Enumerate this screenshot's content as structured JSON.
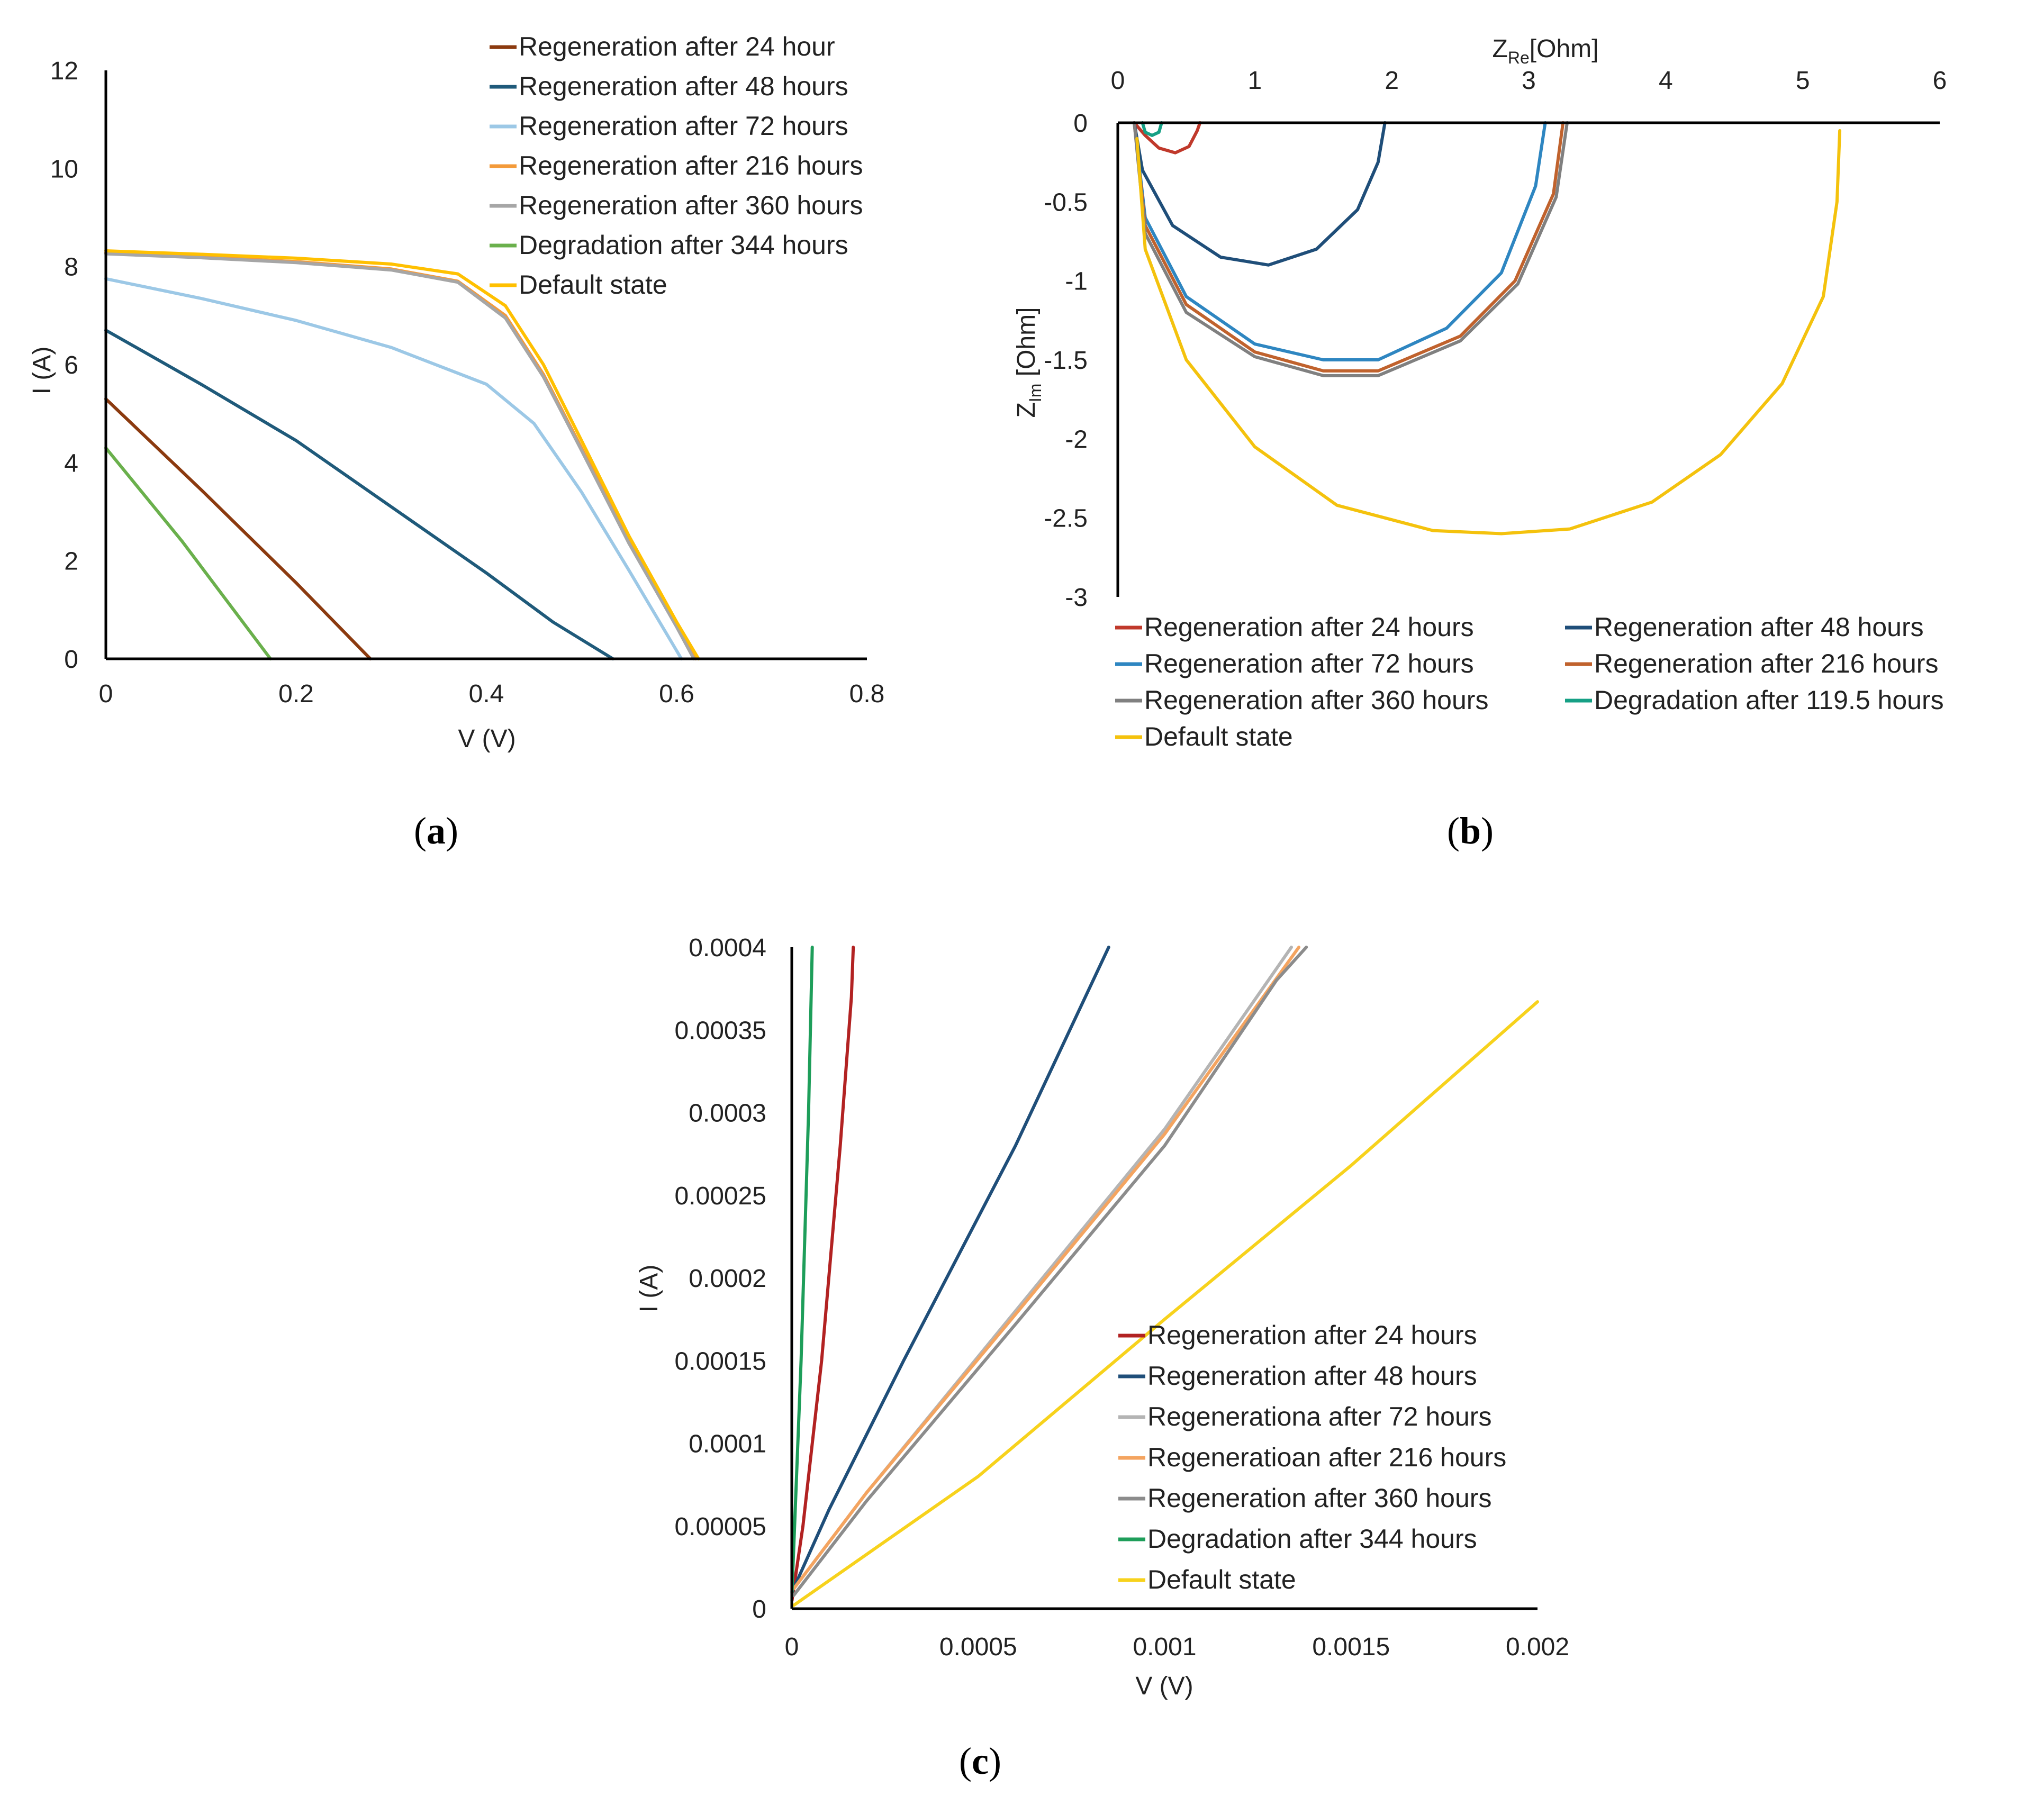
{
  "chart_data": [
    {
      "id": "a",
      "type": "line",
      "caption": "a",
      "xlabel": "V (V)",
      "ylabel": "I (A)",
      "xlim": [
        0,
        0.8
      ],
      "ylim": [
        0,
        12
      ],
      "x_ticks": [
        "0",
        "0.2",
        "0.4",
        "0.6",
        "0.8"
      ],
      "y_ticks": [
        "0",
        "2",
        "4",
        "6",
        "8",
        "10",
        "12"
      ],
      "legend_position": "top-right",
      "series": [
        {
          "name": "Regeneration after 24 hour",
          "color": "#8B3A0F",
          "points": [
            [
              0,
              5.3
            ],
            [
              0.1,
              3.45
            ],
            [
              0.2,
              1.55
            ],
            [
              0.278,
              0
            ]
          ]
        },
        {
          "name": "Regeneration after 48 hours",
          "color": "#1F5A7A",
          "points": [
            [
              0,
              6.7
            ],
            [
              0.1,
              5.6
            ],
            [
              0.2,
              4.45
            ],
            [
              0.3,
              3.1
            ],
            [
              0.4,
              1.75
            ],
            [
              0.47,
              0.75
            ],
            [
              0.533,
              0
            ]
          ]
        },
        {
          "name": "Regeneration after 72 hours",
          "color": "#9CC8E6",
          "points": [
            [
              0,
              7.75
            ],
            [
              0.1,
              7.35
            ],
            [
              0.2,
              6.9
            ],
            [
              0.3,
              6.35
            ],
            [
              0.4,
              5.6
            ],
            [
              0.45,
              4.8
            ],
            [
              0.5,
              3.4
            ],
            [
              0.55,
              1.8
            ],
            [
              0.605,
              0
            ]
          ]
        },
        {
          "name": "Regeneration after 216 hours",
          "color": "#F39A3A",
          "points": [
            [
              0,
              8.28
            ],
            [
              0.1,
              8.2
            ],
            [
              0.2,
              8.1
            ],
            [
              0.3,
              7.95
            ],
            [
              0.37,
              7.7
            ],
            [
              0.42,
              7.0
            ],
            [
              0.46,
              5.8
            ],
            [
              0.5,
              4.3
            ],
            [
              0.55,
              2.4
            ],
            [
              0.6,
              0.7
            ],
            [
              0.62,
              0
            ]
          ]
        },
        {
          "name": "Regeneration after 360 hours",
          "color": "#A6A6A6",
          "points": [
            [
              0,
              8.26
            ],
            [
              0.1,
              8.18
            ],
            [
              0.2,
              8.08
            ],
            [
              0.3,
              7.93
            ],
            [
              0.37,
              7.68
            ],
            [
              0.42,
              6.95
            ],
            [
              0.46,
              5.75
            ],
            [
              0.5,
              4.25
            ],
            [
              0.55,
              2.35
            ],
            [
              0.6,
              0.65
            ],
            [
              0.618,
              0
            ]
          ]
        },
        {
          "name": "Degradation after 344 hours",
          "color": "#6AB04C",
          "points": [
            [
              0,
              4.3
            ],
            [
              0.08,
              2.4
            ],
            [
              0.173,
              0
            ]
          ]
        },
        {
          "name": "Default state",
          "color": "#FFC000",
          "points": [
            [
              0,
              8.32
            ],
            [
              0.1,
              8.25
            ],
            [
              0.2,
              8.17
            ],
            [
              0.3,
              8.05
            ],
            [
              0.37,
              7.85
            ],
            [
              0.42,
              7.2
            ],
            [
              0.46,
              6.0
            ],
            [
              0.5,
              4.45
            ],
            [
              0.55,
              2.5
            ],
            [
              0.6,
              0.75
            ],
            [
              0.623,
              0
            ]
          ]
        }
      ]
    },
    {
      "id": "b",
      "type": "line",
      "caption": "b",
      "xlabel": "ZRe[Ohm]",
      "xlabel_main": "Z",
      "xlabel_sub": "Re",
      "xlabel_rest": "[Ohm]",
      "ylabel": "ZIm [Ohm]",
      "ylabel_main": "Z",
      "ylabel_sub": "Im",
      "ylabel_rest": " [Ohm]",
      "xlim": [
        0,
        6
      ],
      "ylim": [
        -3,
        0
      ],
      "x_ticks": [
        "0",
        "1",
        "2",
        "3",
        "4",
        "5",
        "6"
      ],
      "y_ticks": [
        "0",
        "-0.5",
        "-1",
        "-1.5",
        "-2",
        "-2.5",
        "-3"
      ],
      "legend_position": "bottom",
      "series": [
        {
          "name": "Regeneration after 24 hours",
          "color": "#C0392B",
          "points": [
            [
              0.12,
              0
            ],
            [
              0.2,
              -0.08
            ],
            [
              0.3,
              -0.16
            ],
            [
              0.42,
              -0.19
            ],
            [
              0.52,
              -0.15
            ],
            [
              0.58,
              -0.05
            ],
            [
              0.6,
              0
            ]
          ]
        },
        {
          "name": "Regeneration after 48 hours",
          "color": "#1F4E79",
          "points": [
            [
              0.12,
              0
            ],
            [
              0.18,
              -0.3
            ],
            [
              0.4,
              -0.65
            ],
            [
              0.75,
              -0.85
            ],
            [
              1.1,
              -0.9
            ],
            [
              1.45,
              -0.8
            ],
            [
              1.75,
              -0.55
            ],
            [
              1.9,
              -0.25
            ],
            [
              1.95,
              0
            ]
          ]
        },
        {
          "name": "Regeneration after 72 hours",
          "color": "#2E86C1",
          "points": [
            [
              0.12,
              0
            ],
            [
              0.2,
              -0.6
            ],
            [
              0.5,
              -1.1
            ],
            [
              1.0,
              -1.4
            ],
            [
              1.5,
              -1.5
            ],
            [
              1.9,
              -1.5
            ],
            [
              2.4,
              -1.3
            ],
            [
              2.8,
              -0.95
            ],
            [
              3.05,
              -0.4
            ],
            [
              3.12,
              0
            ]
          ]
        },
        {
          "name": "Regeneration after 216 hours",
          "color": "#C0622D",
          "points": [
            [
              0.12,
              0
            ],
            [
              0.2,
              -0.65
            ],
            [
              0.5,
              -1.15
            ],
            [
              1.0,
              -1.45
            ],
            [
              1.5,
              -1.57
            ],
            [
              1.9,
              -1.57
            ],
            [
              2.5,
              -1.35
            ],
            [
              2.9,
              -1.0
            ],
            [
              3.18,
              -0.45
            ],
            [
              3.25,
              0
            ]
          ]
        },
        {
          "name": "Regeneration after 360 hours",
          "color": "#808080",
          "points": [
            [
              0.12,
              0
            ],
            [
              0.2,
              -0.7
            ],
            [
              0.5,
              -1.2
            ],
            [
              1.0,
              -1.48
            ],
            [
              1.5,
              -1.6
            ],
            [
              1.9,
              -1.6
            ],
            [
              2.5,
              -1.38
            ],
            [
              2.92,
              -1.02
            ],
            [
              3.2,
              -0.47
            ],
            [
              3.28,
              0
            ]
          ]
        },
        {
          "name": "Degradation after 119.5 hours",
          "color": "#16A085",
          "points": [
            [
              0.18,
              0
            ],
            [
              0.2,
              -0.06
            ],
            [
              0.25,
              -0.08
            ],
            [
              0.3,
              -0.06
            ],
            [
              0.32,
              0
            ]
          ]
        },
        {
          "name": "Default state",
          "color": "#F4C20D",
          "points": [
            [
              0.14,
              -0.1
            ],
            [
              0.2,
              -0.8
            ],
            [
              0.5,
              -1.5
            ],
            [
              1.0,
              -2.05
            ],
            [
              1.6,
              -2.42
            ],
            [
              2.3,
              -2.58
            ],
            [
              2.8,
              -2.6
            ],
            [
              3.3,
              -2.57
            ],
            [
              3.9,
              -2.4
            ],
            [
              4.4,
              -2.1
            ],
            [
              4.85,
              -1.65
            ],
            [
              5.15,
              -1.1
            ],
            [
              5.25,
              -0.5
            ],
            [
              5.27,
              -0.05
            ]
          ]
        }
      ]
    },
    {
      "id": "c",
      "type": "line",
      "caption": "c",
      "xlabel": "V (V)",
      "ylabel": "I (A)",
      "xlim": [
        0,
        0.002
      ],
      "ylim": [
        0,
        0.0004
      ],
      "x_ticks": [
        "0",
        "0.0005",
        "0.001",
        "0.0015",
        "0.002"
      ],
      "y_ticks": [
        "0",
        "0.00005",
        "0.0001",
        "0.00015",
        "0.0002",
        "0.00025",
        "0.0003",
        "0.00035",
        "0.0004"
      ],
      "legend_position": "bottom-right",
      "series": [
        {
          "name": "Regeneration after 24 hours",
          "color": "#B22222",
          "points": [
            [
              5e-07,
              5e-06
            ],
            [
              3e-05,
              5e-05
            ],
            [
              8e-05,
              0.00015
            ],
            [
              0.00013,
              0.00028
            ],
            [
              0.00016,
              0.00037
            ],
            [
              0.000165,
              0.0004
            ]
          ]
        },
        {
          "name": "Regeneration after 48 hours",
          "color": "#1F4E79",
          "points": [
            [
              5e-07,
              1e-05
            ],
            [
              0.0001,
              6e-05
            ],
            [
              0.0003,
              0.00015
            ],
            [
              0.0006,
              0.00028
            ],
            [
              0.00085,
              0.0004
            ]
          ]
        },
        {
          "name": "Regenerationa after 72 hours",
          "color": "#B4B4B4",
          "points": [
            [
              5e-06,
              1.2e-05
            ],
            [
              0.0002,
              7e-05
            ],
            [
              0.0006,
              0.00018
            ],
            [
              0.001,
              0.00029
            ],
            [
              0.00134,
              0.0004
            ]
          ]
        },
        {
          "name": "Regeneratioan after 216 hours",
          "color": "#F4A460",
          "points": [
            [
              5e-06,
              1.2e-05
            ],
            [
              0.0002,
              7e-05
            ],
            [
              0.0006,
              0.000178
            ],
            [
              0.001,
              0.000287
            ],
            [
              0.00136,
              0.0004
            ]
          ]
        },
        {
          "name": "Regeneration after 360 hours",
          "color": "#8C8C8C",
          "points": [
            [
              5e-06,
              8e-06
            ],
            [
              0.0002,
              6.5e-05
            ],
            [
              0.0006,
              0.000172
            ],
            [
              0.001,
              0.00028
            ],
            [
              0.0013,
              0.00038
            ],
            [
              0.00138,
              0.0004
            ]
          ]
        },
        {
          "name": "Degradation after 344 hours",
          "color": "#1E9E5A",
          "points": [
            [
              5e-07,
              1e-05
            ],
            [
              2.5e-05,
              0.00015
            ],
            [
              4.5e-05,
              0.0003
            ],
            [
              5.5e-05,
              0.0004
            ]
          ]
        },
        {
          "name": "Default state",
          "color": "#F7D21C",
          "points": [
            [
              5e-06,
              2e-06
            ],
            [
              0.0001,
              1.7e-05
            ],
            [
              0.0005,
              8e-05
            ],
            [
              0.001,
              0.000175
            ],
            [
              0.0015,
              0.000268
            ],
            [
              0.002,
              0.000367
            ]
          ]
        }
      ]
    }
  ]
}
